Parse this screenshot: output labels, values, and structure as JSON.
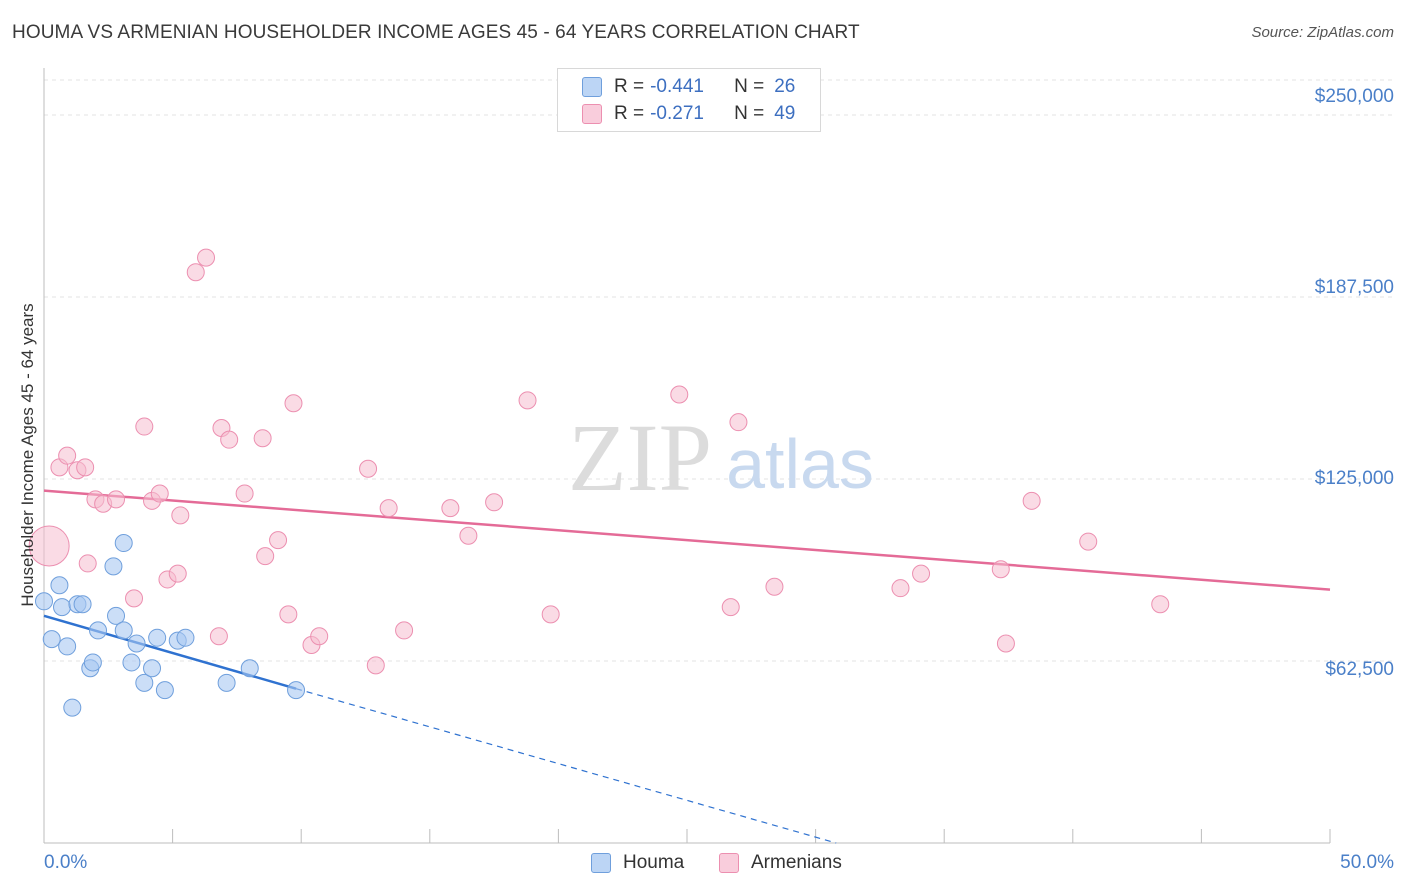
{
  "title": "HOUMA VS ARMENIAN HOUSEHOLDER INCOME AGES 45 - 64 YEARS CORRELATION CHART",
  "source": "Source: ZipAtlas.com",
  "watermark": {
    "zip": "ZIP",
    "atlas": "atlas"
  },
  "colors": {
    "blue_fill": "#a9c8f2",
    "blue_stroke": "#6f9fdc",
    "blue_line": "#2f72d0",
    "pink_fill": "#f6bdd0",
    "pink_stroke": "#ec8fb0",
    "pink_line": "#e46b97",
    "tick_text": "#4a7fc8",
    "grid": "#e3e3e3"
  },
  "legend": {
    "rows": [
      {
        "r_label": "R =",
        "r_value": "-0.441",
        "n_label": "N =",
        "n_value": "26"
      },
      {
        "r_label": "R =",
        "r_value": "-0.271",
        "n_label": "N =",
        "n_value": "49"
      }
    ]
  },
  "bottom_legend": {
    "houma": "Houma",
    "armenians": "Armenians"
  },
  "chart_data": {
    "type": "scatter",
    "title": "HOUMA VS ARMENIAN HOUSEHOLDER INCOME AGES 45 - 64 YEARS CORRELATION CHART",
    "xlabel": "",
    "ylabel": "Householder Income Ages 45 - 64 years",
    "xlim": [
      0,
      50
    ],
    "ylim": [
      0,
      262000
    ],
    "x_tick_labels": [
      "0.0%",
      "50.0%"
    ],
    "y_ticks": [
      62500,
      125000,
      187500,
      250000
    ],
    "y_tick_labels": [
      "$62,500",
      "$125,000",
      "$187,500",
      "$250,000"
    ],
    "grid": true,
    "series": [
      {
        "name": "Houma",
        "r": -0.441,
        "n": 26,
        "points": [
          [
            0.0,
            83000
          ],
          [
            0.3,
            70000
          ],
          [
            0.6,
            88500
          ],
          [
            0.7,
            81000
          ],
          [
            0.9,
            67500
          ],
          [
            1.1,
            46500
          ],
          [
            1.3,
            82000
          ],
          [
            1.5,
            82000
          ],
          [
            1.8,
            60000
          ],
          [
            1.9,
            62000
          ],
          [
            2.1,
            73000
          ],
          [
            2.7,
            95000
          ],
          [
            2.8,
            78000
          ],
          [
            3.1,
            73000
          ],
          [
            3.1,
            103000
          ],
          [
            3.4,
            62000
          ],
          [
            3.6,
            68500
          ],
          [
            3.9,
            55000
          ],
          [
            4.2,
            60000
          ],
          [
            4.4,
            70500
          ],
          [
            4.7,
            52500
          ],
          [
            5.2,
            69500
          ],
          [
            5.5,
            70500
          ],
          [
            7.1,
            55000
          ],
          [
            8.0,
            60000
          ],
          [
            9.8,
            52500
          ]
        ],
        "trend": {
          "x": [
            0.0,
            9.8
          ],
          "y": [
            78000,
            53000
          ]
        },
        "trend_extension": {
          "x": [
            9.8,
            30.8
          ],
          "y": [
            53000,
            0
          ]
        }
      },
      {
        "name": "Armenians",
        "r": -0.271,
        "n": 49,
        "bubble": [
          0.2,
          102000
        ],
        "points": [
          [
            0.6,
            129000
          ],
          [
            0.9,
            133000
          ],
          [
            1.3,
            128000
          ],
          [
            1.6,
            129000
          ],
          [
            1.7,
            96000
          ],
          [
            2.0,
            118000
          ],
          [
            2.3,
            116500
          ],
          [
            2.8,
            118000
          ],
          [
            3.5,
            84000
          ],
          [
            3.9,
            143000
          ],
          [
            4.2,
            117500
          ],
          [
            4.5,
            120000
          ],
          [
            4.8,
            90500
          ],
          [
            5.2,
            92500
          ],
          [
            5.3,
            112500
          ],
          [
            5.9,
            196000
          ],
          [
            6.3,
            201000
          ],
          [
            6.8,
            71000
          ],
          [
            6.9,
            142500
          ],
          [
            7.2,
            138500
          ],
          [
            7.8,
            120000
          ],
          [
            8.5,
            139000
          ],
          [
            8.6,
            98500
          ],
          [
            9.1,
            104000
          ],
          [
            9.5,
            78500
          ],
          [
            9.7,
            151000
          ],
          [
            10.4,
            68000
          ],
          [
            10.7,
            71000
          ],
          [
            12.6,
            128500
          ],
          [
            12.9,
            61000
          ],
          [
            13.4,
            115000
          ],
          [
            14.0,
            73000
          ],
          [
            15.8,
            115000
          ],
          [
            16.5,
            105500
          ],
          [
            17.5,
            117000
          ],
          [
            18.8,
            152000
          ],
          [
            19.7,
            78500
          ],
          [
            24.7,
            154000
          ],
          [
            26.7,
            81000
          ],
          [
            27.0,
            144500
          ],
          [
            28.4,
            88000
          ],
          [
            33.3,
            87500
          ],
          [
            34.1,
            92500
          ],
          [
            37.2,
            94000
          ],
          [
            37.4,
            68500
          ],
          [
            38.4,
            117500
          ],
          [
            40.6,
            103500
          ],
          [
            43.4,
            82000
          ]
        ],
        "trend": {
          "x": [
            0.0,
            50.0
          ],
          "y": [
            121000,
            87000
          ]
        }
      }
    ]
  }
}
